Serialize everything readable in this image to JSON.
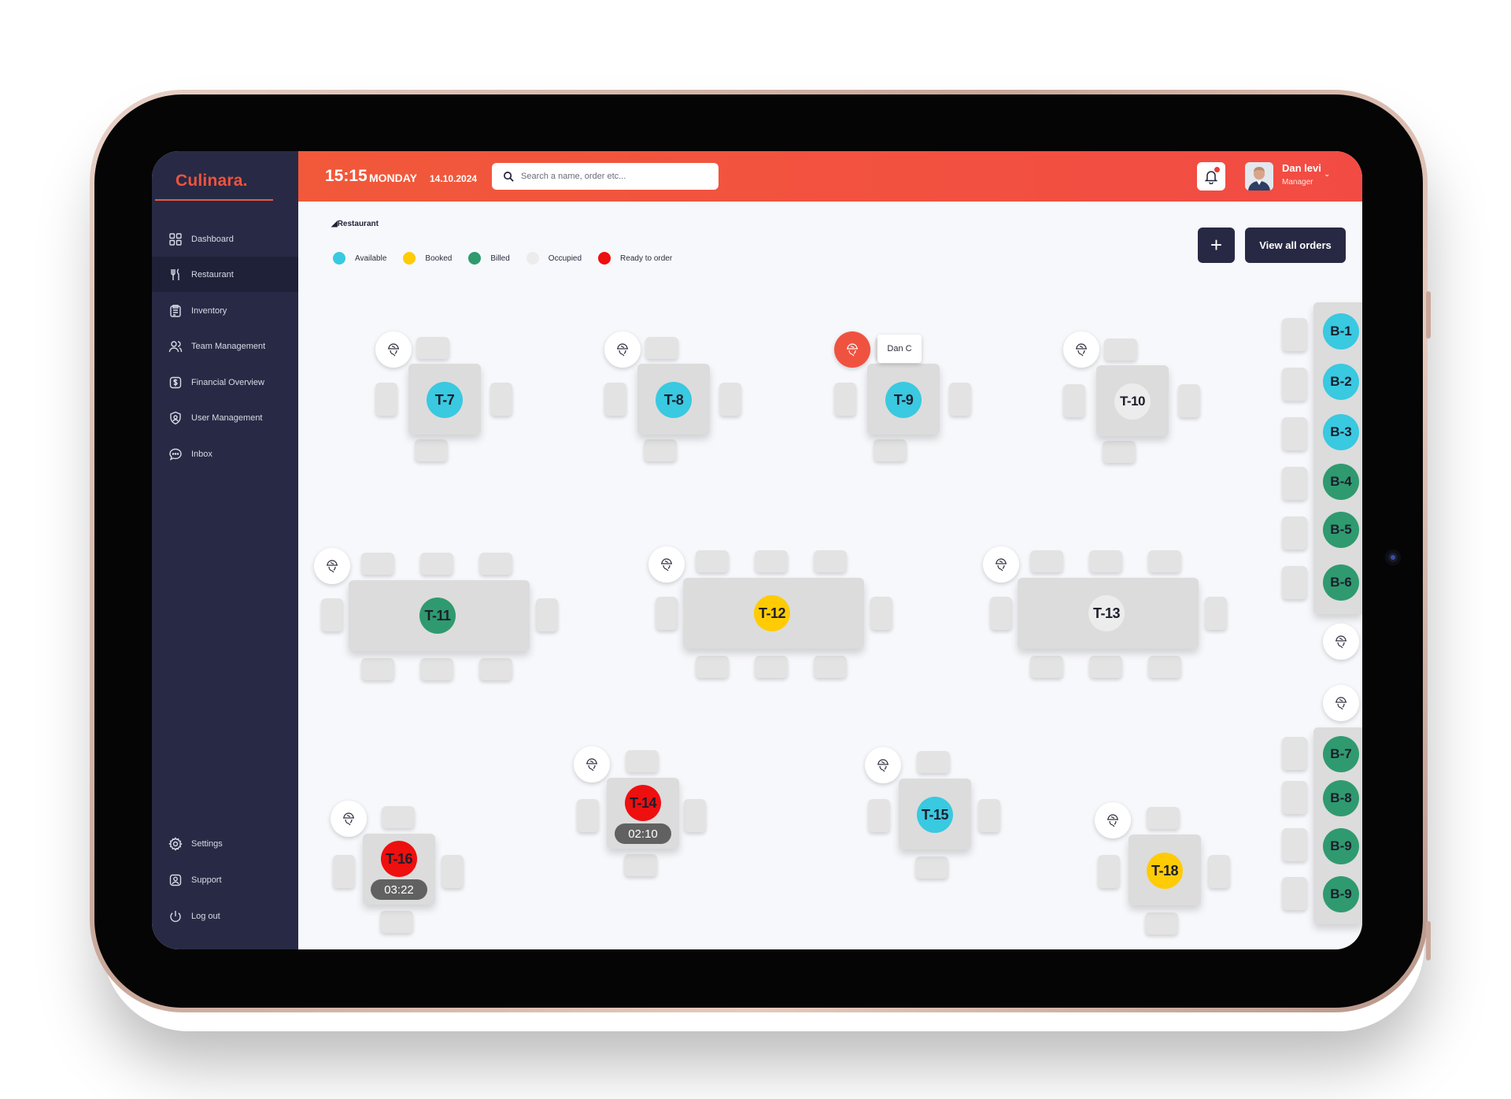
{
  "app": {
    "logo": "Culinara."
  },
  "sidebar": {
    "items": [
      {
        "label": "Dashboard",
        "icon": "dashboard-icon"
      },
      {
        "label": "Restaurant",
        "icon": "cutlery-icon",
        "active": true
      },
      {
        "label": "Inventory",
        "icon": "clipboard-icon"
      },
      {
        "label": "Team Management",
        "icon": "team-icon"
      },
      {
        "label": "Financial Overview",
        "icon": "dollar-icon"
      },
      {
        "label": "User Management",
        "icon": "shield-user-icon"
      },
      {
        "label": "Inbox",
        "icon": "chat-icon"
      }
    ],
    "bottom": [
      {
        "label": "Settings",
        "icon": "gear-icon"
      },
      {
        "label": "Support",
        "icon": "support-icon"
      },
      {
        "label": "Log out",
        "icon": "power-icon"
      }
    ]
  },
  "header": {
    "time": "15:15",
    "day": "MONDAY",
    "date": "14.10.2024",
    "search_placeholder": "Search a name, order etc...",
    "user": {
      "name": "Dan levi",
      "role": "Manager"
    }
  },
  "page": {
    "breadcrumb": "Restaurant",
    "add_button": "+",
    "view_orders_button": "View all orders"
  },
  "legend": [
    {
      "label": "Available",
      "color": "#39c9e0"
    },
    {
      "label": "Booked",
      "color": "#ffcb05"
    },
    {
      "label": "Billed",
      "color": "#2f9a6f"
    },
    {
      "label": "Occupied",
      "color": "#ececec"
    },
    {
      "label": "Ready to order",
      "color": "#ee0f0f"
    }
  ],
  "tables": {
    "t7": {
      "label": "T-7",
      "status": "available"
    },
    "t8": {
      "label": "T-8",
      "status": "available"
    },
    "t9": {
      "label": "T-9",
      "status": "available",
      "waiter": "Dan C"
    },
    "t10": {
      "label": "T-10",
      "status": "occupied"
    },
    "t11": {
      "label": "T-11",
      "status": "billed"
    },
    "t12": {
      "label": "T-12",
      "status": "booked"
    },
    "t13": {
      "label": "T-13",
      "status": "occupied"
    },
    "t14": {
      "label": "T-14",
      "status": "ready",
      "timer": "02:10"
    },
    "t15": {
      "label": "T-15",
      "status": "available"
    },
    "t16": {
      "label": "T-16",
      "status": "ready",
      "timer": "03:22"
    },
    "t18": {
      "label": "T-18",
      "status": "booked"
    }
  },
  "bar": [
    {
      "label": "B-1",
      "status": "available"
    },
    {
      "label": "B-2",
      "status": "available"
    },
    {
      "label": "B-3",
      "status": "available"
    },
    {
      "label": "B-4",
      "status": "billed"
    },
    {
      "label": "B-5",
      "status": "billed"
    },
    {
      "label": "B-6",
      "status": "billed"
    },
    {
      "label": "B-7",
      "status": "billed"
    },
    {
      "label": "B-8",
      "status": "billed"
    },
    {
      "label": "B-9",
      "status": "billed"
    },
    {
      "label": "B-9",
      "status": "billed"
    }
  ]
}
